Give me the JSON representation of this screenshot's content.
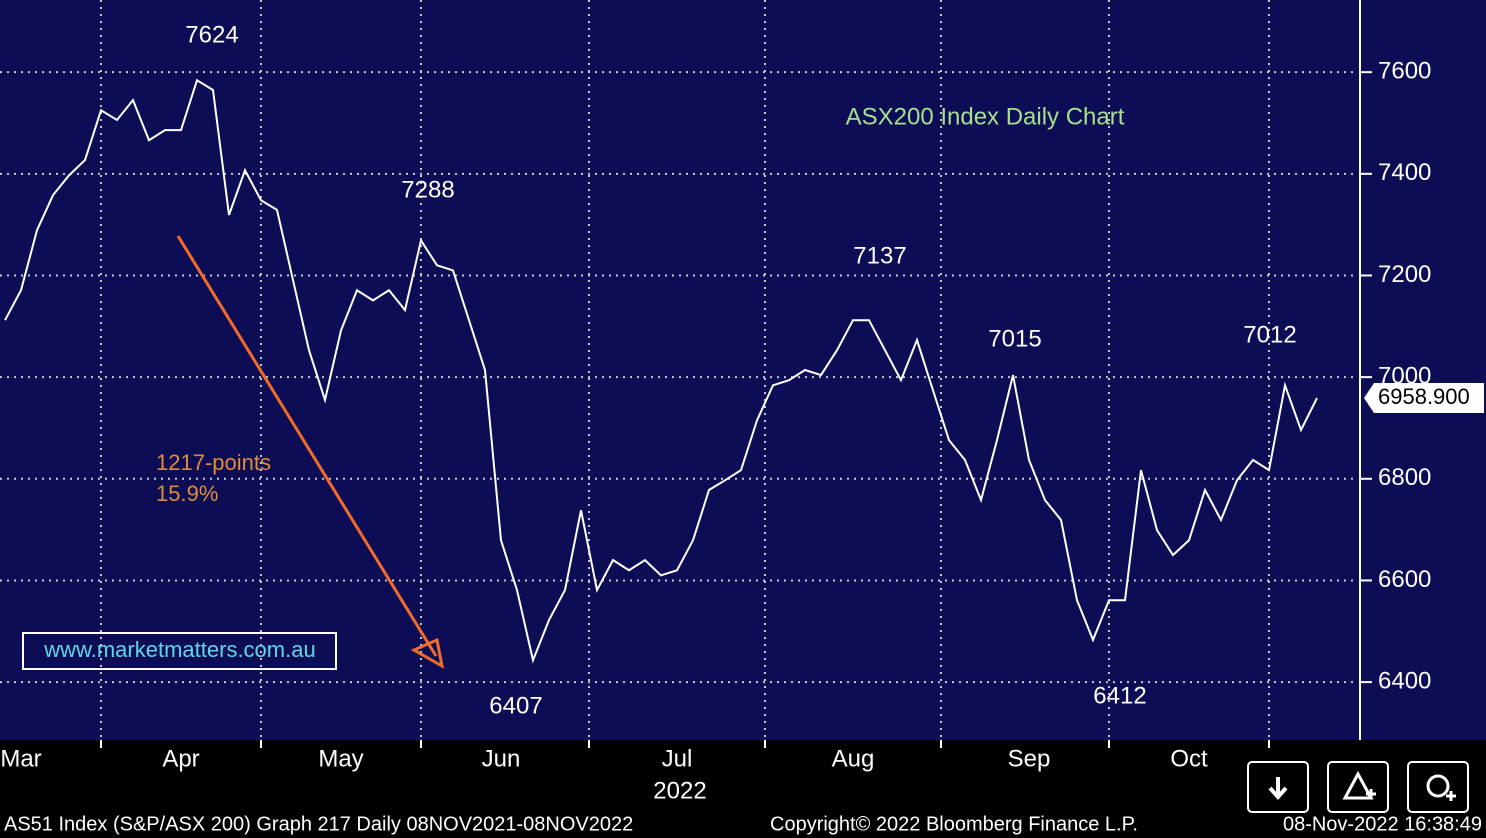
{
  "chart_data": {
    "type": "line",
    "title": "ASX200 Index Daily Chart",
    "categories": [
      null,
      "Mar",
      null,
      null,
      null,
      null,
      null,
      null,
      null,
      null,
      null,
      "Apr",
      null,
      null,
      null,
      null,
      null,
      null,
      null,
      null,
      null,
      "May",
      null,
      null,
      null,
      null,
      null,
      null,
      null,
      null,
      null,
      "Jun",
      null,
      null,
      null,
      null,
      null,
      null,
      null,
      null,
      null,
      null,
      "Jul",
      null,
      null,
      null,
      null,
      null,
      null,
      null,
      null,
      null,
      null,
      "Aug",
      null,
      null,
      null,
      null,
      null,
      null,
      null,
      null,
      null,
      null,
      "Sep",
      null,
      null,
      null,
      null,
      null,
      null,
      null,
      null,
      null,
      "Oct",
      null,
      null,
      null,
      null,
      null,
      null,
      null,
      null
    ],
    "year_label": "2022",
    "series": [
      {
        "name": "AS51 Index",
        "color": "#ffffff",
        "values": [
          7112,
          7171,
          7289,
          7358,
          7397,
          7427,
          7525,
          7506,
          7545,
          7466,
          7486,
          7486,
          7584,
          7565,
          7319,
          7407,
          7348,
          7329,
          7191,
          7053,
          6955,
          7092,
          7171,
          7151,
          7171,
          7132,
          7269,
          7220,
          7210,
          7112,
          7014,
          6679,
          6581,
          6443,
          6522,
          6581,
          6738,
          6581,
          6640,
          6620,
          6640,
          6610,
          6620,
          6679,
          6778,
          6797,
          6817,
          6915,
          6984,
          6994,
          7014,
          7004,
          7053,
          7112,
          7112,
          7053,
          6994,
          7073,
          6974,
          6876,
          6837,
          6758,
          6876,
          7004,
          6837,
          6758,
          6719,
          6561,
          6483,
          6561,
          6561,
          6817,
          6699,
          6650,
          6679,
          6778,
          6719,
          6797,
          6837,
          6817,
          6984,
          6896,
          6958.9
        ]
      }
    ],
    "last_price": {
      "value": 6958.9,
      "label": "6958.900"
    },
    "ylim": [
      6290,
      7742
    ],
    "yticks": [
      6400,
      6600,
      6800,
      7000,
      7200,
      7400,
      7600
    ],
    "grid": true,
    "annotations": [
      7624,
      7288,
      6407,
      7137,
      7015,
      6412,
      7012
    ],
    "move_text": [
      "1217-points",
      "15.9%"
    ],
    "watermark": "www.marketmatters.com.au"
  },
  "footer": {
    "left": "AS51 Index (S&P/ASX 200) Graph 217  Daily 08NOV2021-08NOV2022",
    "center": "Copyright© 2022 Bloomberg Finance L.P.",
    "right": "08-Nov-2022 16:38:49"
  }
}
